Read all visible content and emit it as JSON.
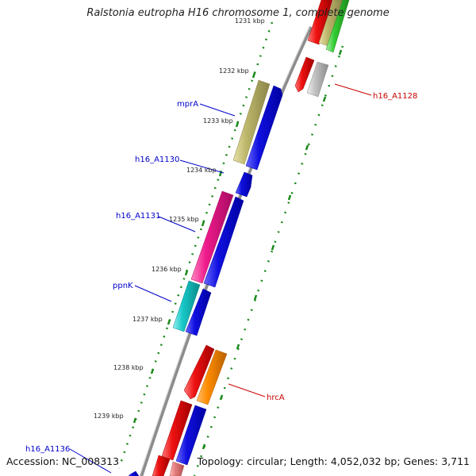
{
  "title": "Ralstonia eutropha H16 chromosome 1, complete genome",
  "accession": "Accession: NC_008313",
  "summary": "Topology: circular; Length: 4,052,032 bp; Genes: 3,711",
  "ticks_top_partial": "1231 kbp",
  "ticks": [
    "1232 kbp",
    "1233 kbp",
    "1234 kbp",
    "1235 kbp",
    "1236 kbp",
    "1237 kbp",
    "1238 kbp",
    "1239 kbp"
  ],
  "gene_labels": {
    "mprA": "mprA",
    "h16_A1130": "h16_A1130",
    "h16_A1131": "h16_A1131",
    "ppnK": "ppnK",
    "h16_A1136": "h16_A1136",
    "h16_A1128": "h16_A1128",
    "hrcA": "hrcA"
  },
  "colors": {
    "backbone": "#8c8c8c",
    "inner_label": "#0000cc",
    "outer_label": "#cc0000",
    "tick_dots": "#1a8a1a",
    "blue_gene": "#1010e0",
    "red_gene": "#ee1111",
    "khaki_gene": "#bdb76b",
    "pink_gene": "#ee1a8c",
    "cyan_gene": "#18c8c8",
    "orange_gene": "#ff8c00",
    "gray_gene": "#bbbbbb",
    "green_gene": "#33cc33",
    "salmon_gene": "#e88080"
  }
}
